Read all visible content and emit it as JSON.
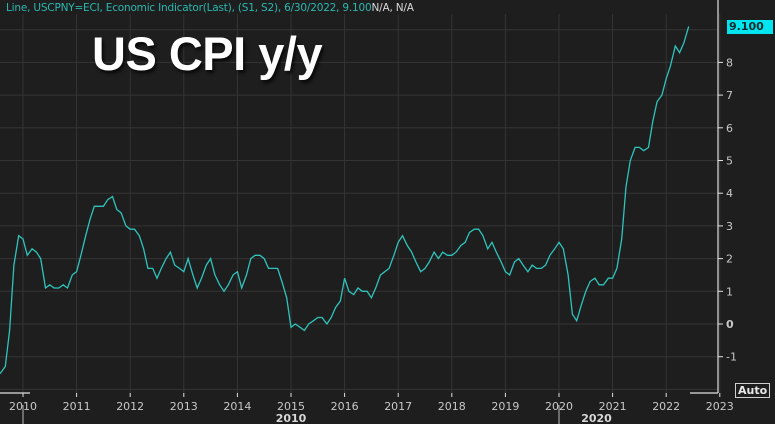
{
  "header": {
    "description": "Line, USCPNY=ECI, Economic Indicator(Last), (S1, S2), 6/30/2022, 9.100",
    "na_text": "N/A, N/A"
  },
  "title": "US CPI y/y",
  "last_value_badge": "9.100",
  "auto_button": "Auto",
  "colors": {
    "background": "#1e1e1e",
    "grid": "#343434",
    "line": "#2ec4bc",
    "badge": "#00e5f0",
    "axis": "#e0e0e0"
  },
  "chart_data": {
    "type": "line",
    "title": "US CPI y/y",
    "xlabel": "",
    "ylabel": "",
    "series_name": "USCPNY=ECI",
    "last_date": "6/30/2022",
    "last_value": 9.1,
    "ylim": [
      -1.8,
      9.4
    ],
    "yticks": [
      -1,
      0,
      1,
      2,
      3,
      4,
      5,
      6,
      7,
      8
    ],
    "xticks": [
      "2010",
      "2011",
      "2012",
      "2013",
      "2014",
      "2015",
      "2016",
      "2017",
      "2018",
      "2019",
      "2020",
      "2021",
      "2022",
      "2023"
    ],
    "x_group_labels": [
      {
        "label": "2010",
        "x": 2015.0
      },
      {
        "label": "2020",
        "x": 2020.7
      }
    ],
    "grid": true,
    "legend": "none",
    "x": [
      2009.5,
      2009.58,
      2009.67,
      2009.75,
      2009.83,
      2009.92,
      2010.0,
      2010.08,
      2010.17,
      2010.25,
      2010.33,
      2010.42,
      2010.5,
      2010.58,
      2010.67,
      2010.75,
      2010.83,
      2010.92,
      2011.0,
      2011.08,
      2011.17,
      2011.25,
      2011.33,
      2011.42,
      2011.5,
      2011.58,
      2011.67,
      2011.75,
      2011.83,
      2011.92,
      2012.0,
      2012.08,
      2012.17,
      2012.25,
      2012.33,
      2012.42,
      2012.5,
      2012.58,
      2012.67,
      2012.75,
      2012.83,
      2012.92,
      2013.0,
      2013.08,
      2013.17,
      2013.25,
      2013.33,
      2013.42,
      2013.5,
      2013.58,
      2013.67,
      2013.75,
      2013.83,
      2013.92,
      2014.0,
      2014.08,
      2014.17,
      2014.25,
      2014.33,
      2014.42,
      2014.5,
      2014.58,
      2014.67,
      2014.75,
      2014.83,
      2014.92,
      2015.0,
      2015.08,
      2015.17,
      2015.25,
      2015.33,
      2015.42,
      2015.5,
      2015.58,
      2015.67,
      2015.75,
      2015.83,
      2015.92,
      2016.0,
      2016.08,
      2016.17,
      2016.25,
      2016.33,
      2016.42,
      2016.5,
      2016.58,
      2016.67,
      2016.75,
      2016.83,
      2016.92,
      2017.0,
      2017.08,
      2017.17,
      2017.25,
      2017.33,
      2017.42,
      2017.5,
      2017.58,
      2017.67,
      2017.75,
      2017.83,
      2017.92,
      2018.0,
      2018.08,
      2018.17,
      2018.25,
      2018.33,
      2018.42,
      2018.5,
      2018.58,
      2018.67,
      2018.75,
      2018.83,
      2018.92,
      2019.0,
      2019.08,
      2019.17,
      2019.25,
      2019.33,
      2019.42,
      2019.5,
      2019.58,
      2019.67,
      2019.75,
      2019.83,
      2019.92,
      2020.0,
      2020.08,
      2020.17,
      2020.25,
      2020.33,
      2020.42,
      2020.5,
      2020.58,
      2020.67,
      2020.75,
      2020.83,
      2020.92,
      2021.0,
      2021.08,
      2021.17,
      2021.25,
      2021.33,
      2021.42,
      2021.5,
      2021.58,
      2021.67,
      2021.75,
      2021.83,
      2021.92,
      2022.0,
      2022.08,
      2022.17,
      2022.25,
      2022.33,
      2022.42
    ],
    "values": [
      -1.6,
      -1.5,
      -1.3,
      -0.2,
      1.8,
      2.7,
      2.6,
      2.1,
      2.3,
      2.2,
      2.0,
      1.1,
      1.2,
      1.1,
      1.1,
      1.2,
      1.1,
      1.5,
      1.6,
      2.1,
      2.7,
      3.2,
      3.6,
      3.6,
      3.6,
      3.8,
      3.9,
      3.5,
      3.4,
      3.0,
      2.9,
      2.9,
      2.7,
      2.3,
      1.7,
      1.7,
      1.4,
      1.7,
      2.0,
      2.2,
      1.8,
      1.7,
      1.6,
      2.0,
      1.5,
      1.1,
      1.4,
      1.8,
      2.0,
      1.5,
      1.2,
      1.0,
      1.2,
      1.5,
      1.6,
      1.1,
      1.5,
      2.0,
      2.1,
      2.1,
      2.0,
      1.7,
      1.7,
      1.7,
      1.3,
      0.8,
      -0.1,
      0.0,
      -0.1,
      -0.2,
      0.0,
      0.1,
      0.2,
      0.2,
      0.0,
      0.2,
      0.5,
      0.7,
      1.4,
      1.0,
      0.9,
      1.1,
      1.0,
      1.0,
      0.8,
      1.1,
      1.5,
      1.6,
      1.7,
      2.1,
      2.5,
      2.7,
      2.4,
      2.2,
      1.9,
      1.6,
      1.7,
      1.9,
      2.2,
      2.0,
      2.2,
      2.1,
      2.1,
      2.2,
      2.4,
      2.5,
      2.8,
      2.9,
      2.9,
      2.7,
      2.3,
      2.5,
      2.2,
      1.9,
      1.6,
      1.5,
      1.9,
      2.0,
      1.8,
      1.6,
      1.8,
      1.7,
      1.7,
      1.8,
      2.1,
      2.3,
      2.5,
      2.3,
      1.5,
      0.3,
      0.1,
      0.6,
      1.0,
      1.3,
      1.4,
      1.2,
      1.2,
      1.4,
      1.4,
      1.7,
      2.6,
      4.2,
      5.0,
      5.4,
      5.4,
      5.3,
      5.4,
      6.2,
      6.8,
      7.0,
      7.5,
      7.9,
      8.5,
      8.3,
      8.6,
      9.1
    ]
  }
}
